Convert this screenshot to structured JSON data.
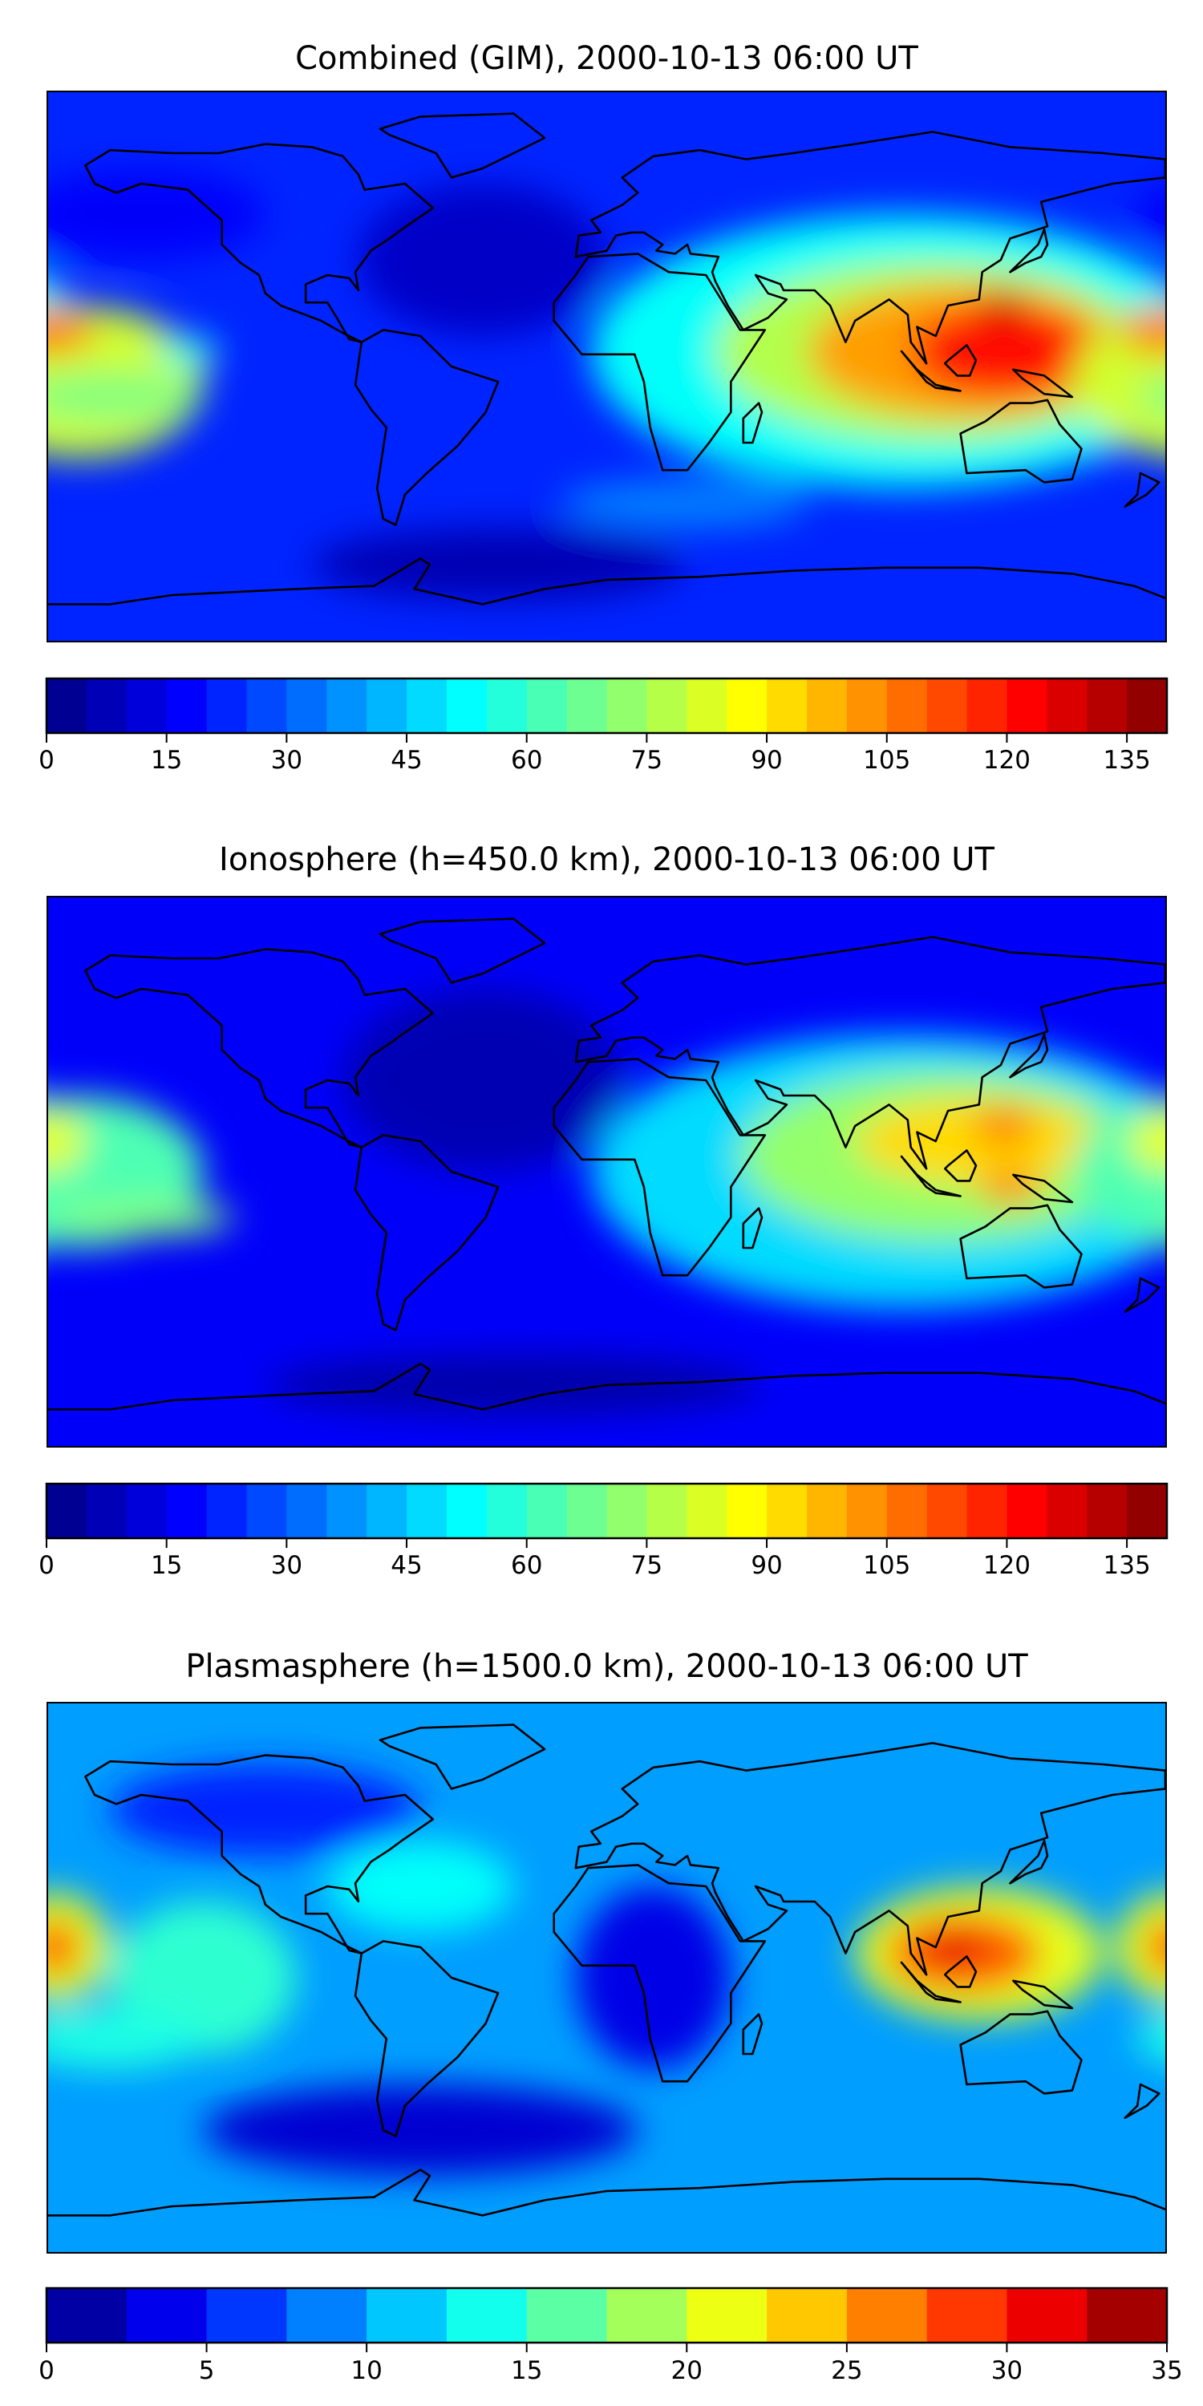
{
  "chart_data": [
    {
      "type": "heatmap",
      "title": "Combined (GIM), 2000-10-13 06:00 UT",
      "projection": "equirectangular world map with coastlines",
      "lon_range": [
        -180,
        180
      ],
      "lat_range": [
        -90,
        90
      ],
      "colorbar": {
        "colormap": "jet",
        "range": [
          0,
          140
        ],
        "step": 5,
        "ticks": [
          "0",
          "15",
          "30",
          "45",
          "60",
          "75",
          "90",
          "105",
          "120",
          "135"
        ]
      },
      "features": {
        "max_region": "Southeast Asia / Indonesia (~125-135)",
        "secondary_max": "central Pacific near dateline (~90-100)",
        "min_region": "North Atlantic and South Atlantic / Antarctic (~5-10)"
      }
    },
    {
      "type": "heatmap",
      "title": "Ionosphere  (h=450.0 km), 2000-10-13 06:00 UT",
      "projection": "equirectangular world map with coastlines",
      "lon_range": [
        -180,
        180
      ],
      "lat_range": [
        -90,
        90
      ],
      "colorbar": {
        "colormap": "jet",
        "range": [
          0,
          140
        ],
        "step": 5,
        "ticks": [
          "0",
          "15",
          "30",
          "45",
          "60",
          "75",
          "90",
          "105",
          "120",
          "135"
        ]
      },
      "features": {
        "max_region": "Southeast Asia (~100-110)",
        "secondary_max": "central Pacific (~80-90)",
        "min_region": "Atlantic / Antarctica (~0-10)"
      }
    },
    {
      "type": "heatmap",
      "title": "Plasmasphere (h=1500.0 km), 2000-10-13 06:00 UT",
      "projection": "equirectangular world map with coastlines",
      "lon_range": [
        -180,
        180
      ],
      "lat_range": [
        -90,
        90
      ],
      "colorbar": {
        "colormap": "jet",
        "range": [
          0,
          35
        ],
        "step": 2.5,
        "ticks": [
          "0",
          "5",
          "10",
          "15",
          "20",
          "25",
          "30",
          "35"
        ]
      },
      "features": {
        "max_region": "Indonesia (~30-32.5)",
        "secondary_max": "Pacific near dateline (~27.5-30)",
        "min_region": "South Atlantic / Africa (~0-5)"
      }
    }
  ]
}
